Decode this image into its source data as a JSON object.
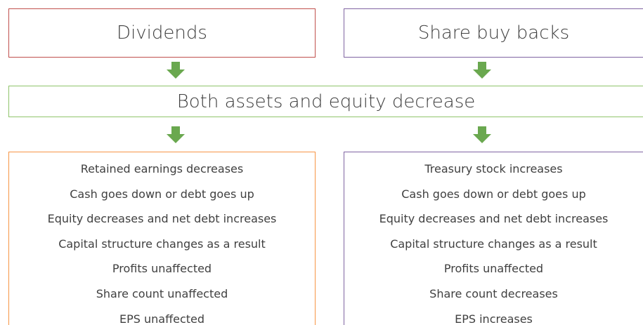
{
  "top": [
    "Dividends",
    "Share buy backs"
  ],
  "middle": "Both assets and equity decrease",
  "lists": [
    [
      "Retained earnings decreases",
      "Cash goes down or debt goes up",
      "Equity decreases and net debt increases",
      "Capital structure changes as a result",
      "Profits unaffected",
      "Share count unaffected",
      "EPS unaffected"
    ],
    [
      "Treasury stock increases",
      "Cash goes down or debt goes up",
      "Equity decreases and net debt increases",
      "Capital structure changes as a result",
      "Profits unaffected",
      "Share count decreases",
      "EPS increases"
    ]
  ]
}
